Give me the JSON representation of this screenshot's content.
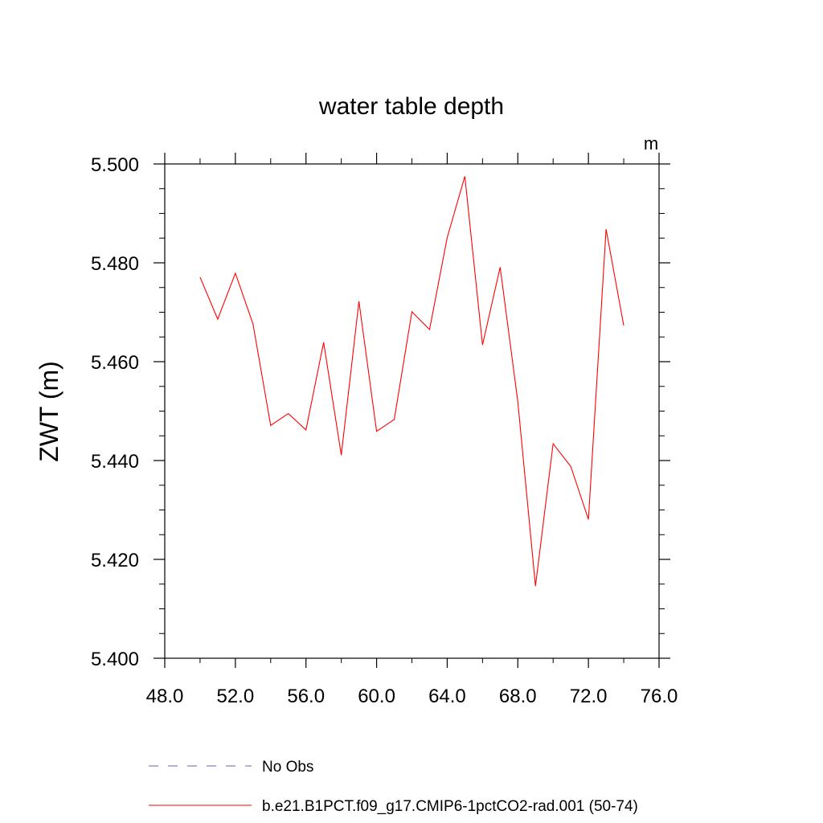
{
  "chart_data": {
    "type": "line",
    "title": "water table depth",
    "units": "m",
    "ylabel": "ZWT  (m)",
    "xlabel": "",
    "xlim": [
      48,
      76
    ],
    "ylim": [
      5.4,
      5.5
    ],
    "xticks": [
      "48.0",
      "52.0",
      "56.0",
      "60.0",
      "64.0",
      "68.0",
      "72.0",
      "76.0"
    ],
    "yticks": [
      "5.400",
      "5.420",
      "5.440",
      "5.460",
      "5.480",
      "5.500"
    ],
    "grid": false,
    "legend_position": "bottom",
    "series": [
      {
        "name": "b.e21.B1PCT.f09_g17.CMIP6-1pctCO2-rad.001 (50-74)",
        "color": "#ff0000",
        "style": "solid",
        "x": [
          50,
          51,
          52,
          53,
          54,
          55,
          56,
          57,
          58,
          59,
          60,
          61,
          62,
          63,
          64,
          65,
          66,
          67,
          68,
          69,
          70,
          71,
          72,
          73,
          74
        ],
        "y": [
          5.4771,
          5.4686,
          5.4779,
          5.4676,
          5.4471,
          5.4495,
          5.4462,
          5.4639,
          5.4411,
          5.4722,
          5.4459,
          5.4483,
          5.4701,
          5.4665,
          5.4851,
          5.4975,
          5.4634,
          5.4791,
          5.4519,
          5.4146,
          5.4434,
          5.4388,
          5.4281,
          5.4868,
          5.4673
        ]
      }
    ],
    "legend": [
      {
        "label": "No Obs",
        "color": "#8080c0",
        "style": "dashed"
      },
      {
        "label": "b.e21.B1PCT.f09_g17.CMIP6-1pctCO2-rad.001 (50-74)",
        "color": "#ff0000",
        "style": "solid"
      }
    ]
  }
}
